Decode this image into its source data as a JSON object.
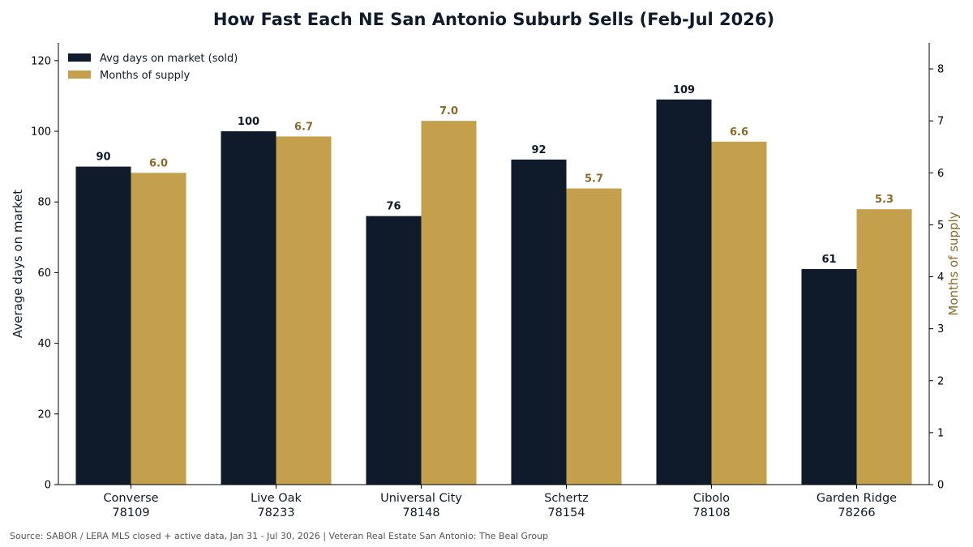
{
  "chart_data": {
    "type": "bar",
    "title": "How Fast Each NE San Antonio Suburb Sells (Feb-Jul 2026)",
    "categories": [
      {
        "name": "Converse",
        "zip": "78109"
      },
      {
        "name": "Live Oak",
        "zip": "78233"
      },
      {
        "name": "Universal City",
        "zip": "78148"
      },
      {
        "name": "Schertz",
        "zip": "78154"
      },
      {
        "name": "Cibolo",
        "zip": "78108"
      },
      {
        "name": "Garden Ridge",
        "zip": "78266"
      }
    ],
    "series": [
      {
        "name": "Avg days on market (sold)",
        "axis": "left",
        "color": "#0f1b2a",
        "values": [
          90,
          100,
          76,
          92,
          109,
          61
        ],
        "value_labels": [
          "90",
          "100",
          "76",
          "92",
          "109",
          "61"
        ]
      },
      {
        "name": "Months of supply",
        "axis": "right",
        "color": "#c4a04d",
        "label_color": "#8a6a2a",
        "values": [
          6.0,
          6.7,
          7.0,
          5.7,
          6.6,
          5.3
        ],
        "value_labels": [
          "6.0",
          "6.7",
          "7.0",
          "5.7",
          "6.6",
          "5.3"
        ]
      }
    ],
    "left_axis": {
      "label": "Average days on market",
      "ylim": [
        0,
        125
      ],
      "ticks": [
        0,
        20,
        40,
        60,
        80,
        100,
        120
      ]
    },
    "right_axis": {
      "label": "Months of supply",
      "label_color": "#8a6a2a",
      "ylim": [
        0,
        8.5
      ],
      "ticks": [
        0,
        1,
        2,
        3,
        4,
        5,
        6,
        7,
        8
      ]
    },
    "grid": false,
    "legend_position": "top-left",
    "source": "Source: SABOR / LERA MLS closed + active data, Jan 31 - Jul 30, 2026 | Veteran Real Estate San Antonio: The Beal Group"
  }
}
